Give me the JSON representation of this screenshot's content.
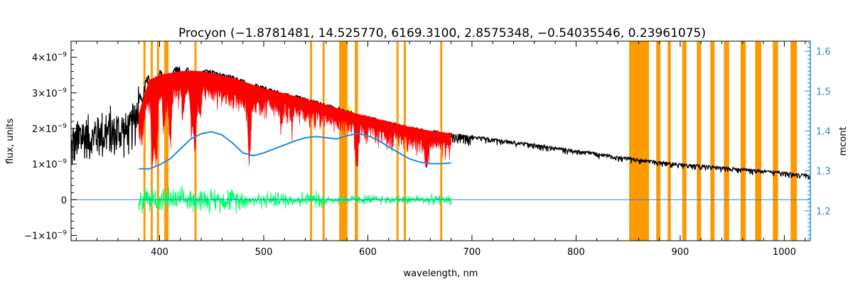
{
  "chart_data": {
    "type": "line",
    "title": "Procyon    (−1.8781481, 14.525770, 6169.3100, 2.8575348, −0.54035546, 0.23961075)",
    "xlabel": "wavelength, nm",
    "ylabel_left": "flux, units",
    "ylabel_right": "mcont",
    "xlim": [
      315,
      1025
    ],
    "ylim_left": [
      -1.15e-09,
      4.45e-09
    ],
    "ylim_right": [
      1.125,
      1.625
    ],
    "x_ticks": [
      {
        "value": 400,
        "label": "400"
      },
      {
        "value": 500,
        "label": "500"
      },
      {
        "value": 600,
        "label": "600"
      },
      {
        "value": 700,
        "label": "700"
      },
      {
        "value": 800,
        "label": "800"
      },
      {
        "value": 900,
        "label": "900"
      },
      {
        "value": 1000,
        "label": "1000"
      }
    ],
    "y_ticks_left": [
      {
        "value": 4e-09,
        "base": "4×10",
        "exp": "−9"
      },
      {
        "value": 3e-09,
        "base": "3×10",
        "exp": "−9"
      },
      {
        "value": 2e-09,
        "base": "2×10",
        "exp": "−9"
      },
      {
        "value": 1e-09,
        "base": "1×10",
        "exp": "−9"
      },
      {
        "value": 0,
        "base": "0",
        "exp": ""
      },
      {
        "value": -1e-09,
        "base": "−1×10",
        "exp": "−9"
      }
    ],
    "y_ticks_right": [
      {
        "value": 1.6,
        "label": "1.6"
      },
      {
        "value": 1.5,
        "label": "1.5"
      },
      {
        "value": 1.4,
        "label": "1.4"
      },
      {
        "value": 1.3,
        "label": "1.3"
      },
      {
        "value": 1.2,
        "label": "1.2"
      }
    ],
    "colors": {
      "observed": "#000000",
      "model": "#ff0000",
      "continuum": "#1e8ce6",
      "residual": "#00ff66",
      "mask": "#ff9900",
      "highlight": "#ffff00",
      "right_axis": "#1e8ce6"
    },
    "series": [
      {
        "key": "observed_flux",
        "color": "#000000",
        "x": [
          315,
          330,
          345,
          360,
          372,
          378,
          382,
          390,
          400,
          410,
          420,
          430,
          440,
          450,
          460,
          470,
          480,
          490,
          500,
          520,
          540,
          560,
          580,
          600,
          620,
          640,
          660,
          680,
          700,
          720,
          740,
          760,
          780,
          800,
          820,
          840,
          860,
          880,
          900,
          920,
          940,
          960,
          980,
          1000,
          1025
        ],
        "y": [
          1.7e-09,
          2e-09,
          2.05e-09,
          2.1e-09,
          2.15e-09,
          2.5e-09,
          3.2e-09,
          3.55e-09,
          3.65e-09,
          3.72e-09,
          3.75e-09,
          3.72e-09,
          3.68e-09,
          3.62e-09,
          3.55e-09,
          3.48e-09,
          3.38e-09,
          3.28e-09,
          3.18e-09,
          3.02e-09,
          2.86e-09,
          2.7e-09,
          2.52e-09,
          2.35e-09,
          2.2e-09,
          2.06e-09,
          1.95e-09,
          1.87e-09,
          1.8e-09,
          1.72e-09,
          1.65e-09,
          1.57e-09,
          1.48e-09,
          1.4e-09,
          1.32e-09,
          1.22e-09,
          1.15e-09,
          1.08e-09,
          1.02e-09,
          9.8e-10,
          9.3e-10,
          8.8e-10,
          8.3e-10,
          7.8e-10,
          7e-10
        ]
      },
      {
        "key": "model_flux",
        "color": "#ff0000",
        "x": [
          380,
          390,
          400,
          410,
          420,
          430,
          440,
          450,
          460,
          470,
          480,
          490,
          500,
          520,
          540,
          560,
          580,
          600,
          620,
          640,
          660,
          680
        ],
        "y": [
          2.4e-09,
          3.35e-09,
          3.5e-09,
          3.55e-09,
          3.6e-09,
          3.62e-09,
          3.6e-09,
          3.55e-09,
          3.48e-09,
          3.42e-09,
          3.32e-09,
          3.22e-09,
          3.12e-09,
          2.98e-09,
          2.82e-09,
          2.66e-09,
          2.48e-09,
          2.33e-09,
          2.18e-09,
          2.04e-09,
          1.93e-09,
          1.85e-09
        ]
      },
      {
        "key": "continuum_mcont",
        "axis": "right",
        "color": "#1e8ce6",
        "x": [
          380,
          390,
          400,
          410,
          420,
          430,
          440,
          450,
          460,
          470,
          480,
          490,
          500,
          510,
          520,
          530,
          540,
          550,
          560,
          570,
          580,
          590,
          600,
          610,
          620,
          630,
          640,
          650,
          660,
          670,
          680
        ],
        "y": [
          1.305,
          1.305,
          1.315,
          1.33,
          1.355,
          1.38,
          1.393,
          1.398,
          1.39,
          1.37,
          1.345,
          1.338,
          1.345,
          1.355,
          1.365,
          1.375,
          1.383,
          1.386,
          1.383,
          1.38,
          1.388,
          1.394,
          1.388,
          1.377,
          1.36,
          1.345,
          1.33,
          1.322,
          1.318,
          1.318,
          1.32
        ]
      }
    ],
    "absorption_lines": [
      {
        "x": 383.5,
        "depth": 0.15
      },
      {
        "x": 393.4,
        "depth": 0.55
      },
      {
        "x": 396.8,
        "depth": 0.5
      },
      {
        "x": 404.6,
        "depth": 0.25
      },
      {
        "x": 410.2,
        "depth": 0.4
      },
      {
        "x": 422.7,
        "depth": 0.2
      },
      {
        "x": 430.8,
        "depth": 0.3
      },
      {
        "x": 434.0,
        "depth": 0.45
      },
      {
        "x": 438.4,
        "depth": 0.2
      },
      {
        "x": 486.1,
        "depth": 0.5
      },
      {
        "x": 516.9,
        "depth": 0.2
      },
      {
        "x": 526.9,
        "depth": 0.15
      },
      {
        "x": 589.0,
        "depth": 0.3
      },
      {
        "x": 589.6,
        "depth": 0.28
      },
      {
        "x": 656.3,
        "depth": 0.5
      }
    ],
    "residual": {
      "x_range": [
        380,
        680
      ],
      "color": "#00ff66"
    },
    "masked_regions": [
      [
        384.5,
        386.5
      ],
      [
        391.5,
        393.5
      ],
      [
        397.5,
        399.5
      ],
      [
        404.5,
        406.5
      ],
      [
        406.5,
        408.5
      ],
      [
        433.5,
        435.5
      ],
      [
        544.5,
        546.5
      ],
      [
        556.5,
        558.5
      ],
      [
        572.5,
        580.5
      ],
      [
        587.5,
        590.5
      ],
      [
        627.5,
        629.5
      ],
      [
        634.5,
        636.5
      ],
      [
        669.5,
        671.5
      ],
      [
        851,
        870
      ],
      [
        877,
        881
      ],
      [
        888,
        891
      ],
      [
        902,
        906
      ],
      [
        916,
        920
      ],
      [
        929,
        933
      ],
      [
        942,
        947
      ],
      [
        958,
        963
      ],
      [
        972,
        978
      ],
      [
        989,
        994
      ],
      [
        1006,
        1012
      ]
    ],
    "highlight_regions": [
      [
        579,
        584
      ]
    ]
  }
}
